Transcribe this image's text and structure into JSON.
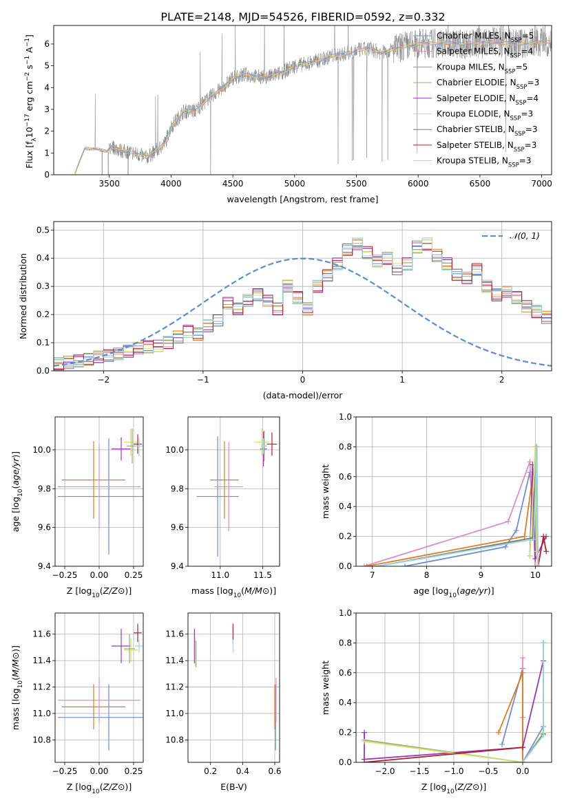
{
  "figure_title": "PLATE=2148, MJD=54526, FIBERID=0592, z=0.332",
  "colors": {
    "Chabrier MILES": "#6b8fd6",
    "Salpeter MILES": "#e38bbf",
    "Kroupa MILES": "#e07b1f",
    "Chabrier ELODIE": "#9aae78",
    "Salpeter ELODIE": "#9b35b4",
    "Kroupa ELODIE": "#d4e36a",
    "Chabrier STELIB": "#7a7a7a",
    "Salpeter STELIB": "#b21e2a",
    "Kroupa STELIB": "#9dd6e3",
    "data": "#808080",
    "normal": "#5b8fd6"
  },
  "chart_data": [
    {
      "id": "spectrum",
      "type": "line",
      "xlabel": "wavelength [Angstrom, rest frame]",
      "ylabel_parts": [
        "Flux [f",
        "λ",
        "10",
        "−17",
        " erg cm",
        "−2",
        " s",
        "−1",
        " A",
        "−1",
        "]"
      ],
      "xlim": [
        3050,
        7080
      ],
      "ylim": [
        0,
        6.85
      ],
      "xticks": [
        3500,
        4000,
        4500,
        5000,
        5500,
        6000,
        6500,
        7000
      ],
      "yticks": [
        0,
        1,
        2,
        3,
        4,
        5,
        6
      ],
      "continuum": {
        "x": [
          3220,
          3300,
          3400,
          3480,
          3520,
          3600,
          3700,
          3800,
          3860,
          3950,
          4000,
          4100,
          4200,
          4300,
          4400,
          4500,
          4600,
          4700,
          4800,
          4900,
          5000,
          5100,
          5200,
          5300,
          5400,
          5500,
          5600,
          5700,
          5800,
          5900,
          6000,
          6200,
          6400,
          6600,
          6800,
          7000
        ],
        "y": [
          0,
          1.2,
          1.2,
          1.05,
          1.3,
          1.1,
          1.0,
          0.8,
          1.0,
          1.45,
          2.2,
          2.9,
          2.95,
          3.5,
          3.9,
          4.45,
          4.6,
          4.5,
          4.5,
          4.7,
          5.0,
          5.1,
          5.25,
          5.45,
          5.55,
          5.7,
          5.8,
          5.6,
          5.75,
          5.9,
          6.0,
          6.05,
          6.0,
          6.1,
          6.0,
          6.1
        ]
      },
      "legend": [
        {
          "name": "Chabrier MILES",
          "nssp": "5"
        },
        {
          "name": "Salpeter MILES",
          "nssp": "4"
        },
        {
          "name": "Kroupa MILES",
          "nssp": "5"
        },
        {
          "name": "Chabrier ELODIE",
          "nssp": "3"
        },
        {
          "name": "Salpeter ELODIE",
          "nssp": "4"
        },
        {
          "name": "Kroupa ELODIE",
          "nssp": "3"
        },
        {
          "name": "Chabrier STELIB",
          "nssp": "3"
        },
        {
          "name": "Salpeter STELIB",
          "nssp": "3"
        },
        {
          "name": "Kroupa STELIB",
          "nssp": "3"
        }
      ],
      "legend_placement": "upper-right"
    },
    {
      "id": "residuals",
      "type": "step",
      "xlabel": "(data-model)/error",
      "ylabel": "Normed distribution",
      "xlim": [
        -2.5,
        2.5
      ],
      "ylim": [
        0,
        0.53
      ],
      "xticks": [
        -2,
        -1,
        0,
        1,
        2
      ],
      "yticks": [
        0.0,
        0.1,
        0.2,
        0.3,
        0.4,
        0.5
      ],
      "bin_width": 0.1,
      "base_hist": [
        0.02,
        0.025,
        0.03,
        0.035,
        0.04,
        0.05,
        0.055,
        0.06,
        0.07,
        0.08,
        0.085,
        0.09,
        0.1,
        0.12,
        0.14,
        0.13,
        0.16,
        0.18,
        0.24,
        0.22,
        0.25,
        0.27,
        0.25,
        0.22,
        0.3,
        0.26,
        0.22,
        0.3,
        0.34,
        0.38,
        0.43,
        0.45,
        0.42,
        0.39,
        0.4,
        0.36,
        0.38,
        0.44,
        0.45,
        0.41,
        0.38,
        0.34,
        0.33,
        0.36,
        0.3,
        0.27,
        0.28,
        0.26,
        0.23,
        0.21,
        0.19,
        0.16,
        0.14,
        0.12,
        0.1,
        0.08,
        0.075,
        0.065,
        0.06,
        0.055,
        0.045,
        0.04,
        0.035,
        0.03
      ],
      "hist_start": -2.6,
      "legend": [
        {
          "name": "𝒩(0, 1)"
        }
      ],
      "legend_placement": "upper-right"
    },
    {
      "id": "age_vs_Z",
      "type": "errorbar",
      "xlabel": "Z [log10(Z/Z⊙)]",
      "ylabel": "age  [log10(age/yr)]",
      "xlim": [
        -0.32,
        0.32
      ],
      "ylim": [
        9.4,
        10.17
      ],
      "xticks": [
        -0.25,
        0.0,
        0.25
      ],
      "xtick_labels": [
        "−0.25",
        "0.00",
        "0.25"
      ],
      "yticks": [
        9.4,
        9.6,
        9.8,
        10.0
      ],
      "points": [
        {
          "model": "Chabrier MILES",
          "x": 0.07,
          "y": 9.76,
          "xerr": 0.37,
          "yerr": 0.3
        },
        {
          "model": "Salpeter MILES",
          "x": 0.0,
          "y": 9.81,
          "xerr": 0.3,
          "yerr": 0.22
        },
        {
          "model": "Kroupa MILES",
          "x": -0.04,
          "y": 9.845,
          "xerr": 0.23,
          "yerr": 0.2
        },
        {
          "model": "Salpeter ELODIE",
          "x": 0.16,
          "y": 10.005,
          "xerr": 0.07,
          "yerr": 0.06
        },
        {
          "model": "Kroupa ELODIE",
          "x": 0.23,
          "y": 10.04,
          "xerr": 0.05,
          "yerr": 0.07
        },
        {
          "model": "Chabrier ELODIE",
          "x": 0.24,
          "y": 10.02,
          "xerr": 0.04,
          "yerr": 0.09
        },
        {
          "model": "Salpeter STELIB",
          "x": 0.28,
          "y": 10.03,
          "xerr": 0.03,
          "yerr": 0.05
        },
        {
          "model": "Kroupa STELIB",
          "x": 0.29,
          "y": 10.02,
          "xerr": 0.03,
          "yerr": 0.05
        }
      ]
    },
    {
      "id": "age_vs_mass",
      "type": "errorbar",
      "xlabel": "mass [log10(M/M⊙)]",
      "ylabel": "",
      "xlim": [
        10.62,
        11.7
      ],
      "ylim": [
        9.4,
        10.17
      ],
      "xticks": [
        11.0,
        11.5
      ],
      "xtick_labels": [
        "11.0",
        "11.5"
      ],
      "yticks": [
        9.4,
        9.6,
        9.8,
        10.0
      ],
      "points": [
        {
          "model": "Chabrier MILES",
          "x": 10.97,
          "y": 9.76,
          "xerr": 0.25,
          "yerr": 0.31
        },
        {
          "model": "Salpeter MILES",
          "x": 11.1,
          "y": 9.81,
          "xerr": 0.17,
          "yerr": 0.23
        },
        {
          "model": "Kroupa MILES",
          "x": 11.05,
          "y": 9.845,
          "xerr": 0.17,
          "yerr": 0.2
        },
        {
          "model": "Salpeter ELODIE",
          "x": 11.51,
          "y": 10.005,
          "xerr": 0.04,
          "yerr": 0.09
        },
        {
          "model": "Kroupa ELODIE",
          "x": 11.49,
          "y": 10.04,
          "xerr": 0.08,
          "yerr": 0.07
        },
        {
          "model": "Chabrier ELODIE",
          "x": 11.52,
          "y": 10.02,
          "xerr": 0.03,
          "yerr": 0.08
        },
        {
          "model": "Salpeter STELIB",
          "x": 11.61,
          "y": 10.03,
          "xerr": 0.06,
          "yerr": 0.06
        },
        {
          "model": "Kroupa STELIB",
          "x": 11.51,
          "y": 10.02,
          "xerr": 0.03,
          "yerr": 0.04
        }
      ]
    },
    {
      "id": "weight_vs_age",
      "type": "line",
      "xlabel": "age  [log10(age/yr)]",
      "ylabel": "mass weight",
      "xlim": [
        6.7,
        10.3
      ],
      "ylim": [
        0,
        1
      ],
      "xticks": [
        7,
        8,
        9,
        10
      ],
      "xtick_labels": [
        "7",
        "8",
        "9",
        "10"
      ],
      "yticks": [
        0,
        0.2,
        0.4,
        0.6,
        0.8,
        1.0
      ],
      "series": [
        {
          "model": "Chabrier MILES",
          "x": [
            7.6,
            9.45,
            9.65,
            9.9,
            10.05
          ],
          "y": [
            0.0,
            0.13,
            0.24,
            0.63,
            0.0
          ]
        },
        {
          "model": "Salpeter MILES",
          "x": [
            6.85,
            9.5,
            9.9,
            10.0
          ],
          "y": [
            0.0,
            0.3,
            0.7,
            0.0
          ]
        },
        {
          "model": "Kroupa MILES",
          "x": [
            6.9,
            9.8,
            9.95,
            10.05
          ],
          "y": [
            0.0,
            0.2,
            0.6,
            0.0
          ]
        },
        {
          "model": "Chabrier ELODIE",
          "x": [
            7.1,
            9.95,
            10.02,
            10.04
          ],
          "y": [
            0.0,
            0.19,
            0.8,
            0.0
          ]
        },
        {
          "model": "Salpeter ELODIE",
          "x": [
            9.9,
            9.95,
            10.0,
            10.2
          ],
          "y": [
            0.07,
            0.68,
            0.05,
            0.2
          ]
        },
        {
          "model": "Kroupa ELODIE",
          "x": [
            9.9,
            10.0,
            10.02,
            10.05
          ],
          "y": [
            0.07,
            0.8,
            0.1,
            0.0
          ]
        },
        {
          "model": "Chabrier STELIB",
          "x": [
            7.1,
            9.95,
            10.03
          ],
          "y": [
            0.0,
            0.19,
            0.8
          ]
        },
        {
          "model": "Salpeter STELIB",
          "x": [
            10.05,
            10.15,
            10.2
          ],
          "y": [
            0.0,
            0.2,
            0.1
          ]
        },
        {
          "model": "Kroupa STELIB",
          "x": [
            7.1,
            9.97,
            10.03,
            10.05
          ],
          "y": [
            0.0,
            0.18,
            0.8,
            0.0
          ]
        }
      ]
    },
    {
      "id": "mass_vs_Z",
      "type": "errorbar",
      "xlabel": "Z [log10(Z/Z⊙)]",
      "ylabel": "mass [log10(M/M⊙)]",
      "xlim": [
        -0.32,
        0.32
      ],
      "ylim": [
        10.63,
        11.76
      ],
      "xticks": [
        -0.25,
        0.0,
        0.25
      ],
      "xtick_labels": [
        "−0.25",
        "0.00",
        "0.25"
      ],
      "yticks": [
        10.8,
        11.0,
        11.2,
        11.4,
        11.6
      ],
      "points": [
        {
          "model": "Chabrier MILES",
          "x": 0.07,
          "y": 10.97,
          "xerr": 0.37,
          "yerr": 0.25
        },
        {
          "model": "Salpeter MILES",
          "x": 0.0,
          "y": 11.1,
          "xerr": 0.3,
          "yerr": 0.17
        },
        {
          "model": "Kroupa MILES",
          "x": -0.04,
          "y": 11.05,
          "xerr": 0.23,
          "yerr": 0.17
        },
        {
          "model": "Salpeter ELODIE",
          "x": 0.16,
          "y": 11.51,
          "xerr": 0.07,
          "yerr": 0.13
        },
        {
          "model": "Kroupa ELODIE",
          "x": 0.23,
          "y": 11.48,
          "xerr": 0.05,
          "yerr": 0.09
        },
        {
          "model": "Chabrier ELODIE",
          "x": 0.22,
          "y": 11.49,
          "xerr": 0.04,
          "yerr": 0.11
        },
        {
          "model": "Salpeter STELIB",
          "x": 0.28,
          "y": 11.61,
          "xerr": 0.03,
          "yerr": 0.07
        },
        {
          "model": "Kroupa STELIB",
          "x": 0.29,
          "y": 11.51,
          "xerr": 0.03,
          "yerr": 0.05
        }
      ]
    },
    {
      "id": "mass_vs_ebv",
      "type": "errorbar",
      "xlabel": "E(B-V)",
      "ylabel": "",
      "xlim": [
        0.06,
        0.63
      ],
      "ylim": [
        10.63,
        11.76
      ],
      "xticks": [
        0.2,
        0.4,
        0.6
      ],
      "xtick_labels": [
        "0.2",
        "0.4",
        "0.6"
      ],
      "yticks": [
        10.8,
        11.0,
        11.2,
        11.4,
        11.6
      ],
      "points": [
        {
          "model": "Salpeter ELODIE",
          "x": 0.1,
          "y": 11.51,
          "xerr": 0.0,
          "yerr": 0.13
        },
        {
          "model": "Kroupa ELODIE",
          "x": 0.105,
          "y": 11.47,
          "xerr": 0.0,
          "yerr": 0.11
        },
        {
          "model": "Chabrier ELODIE",
          "x": 0.11,
          "y": 11.45,
          "xerr": 0.0,
          "yerr": 0.1
        },
        {
          "model": "Salpeter STELIB",
          "x": 0.34,
          "y": 11.61,
          "xerr": 0.0,
          "yerr": 0.07
        },
        {
          "model": "Kroupa STELIB",
          "x": 0.34,
          "y": 11.51,
          "xerr": 0.0,
          "yerr": 0.05
        },
        {
          "model": "Chabrier MILES",
          "x": 0.605,
          "y": 10.97,
          "xerr": 0.0,
          "yerr": 0.25
        },
        {
          "model": "Salpeter MILES",
          "x": 0.608,
          "y": 11.1,
          "xerr": 0.0,
          "yerr": 0.17
        },
        {
          "model": "Kroupa MILES",
          "x": 0.6,
          "y": 11.05,
          "xerr": 0.0,
          "yerr": 0.17
        }
      ]
    },
    {
      "id": "weight_vs_Z",
      "type": "line",
      "xlabel": "Z [log10(Z/Z⊙)]",
      "ylabel": "mass weight",
      "xlim": [
        -2.42,
        0.42
      ],
      "ylim": [
        0,
        1
      ],
      "xticks": [
        -2.0,
        -1.5,
        -1.0,
        -0.5,
        0.0
      ],
      "xtick_labels": [
        "−2.0",
        "−1.5",
        "−1.0",
        "−0.5",
        "0.0"
      ],
      "yticks": [
        0,
        0.2,
        0.4,
        0.6,
        0.8,
        1.0
      ],
      "series": [
        {
          "model": "Chabrier MILES",
          "x": [
            -0.3,
            0.0,
            0.0,
            0.3,
            0.3
          ],
          "y": [
            0.12,
            0.63,
            0.0,
            0.24,
            0.8
          ]
        },
        {
          "model": "Salpeter MILES",
          "x": [
            0.0,
            0.0,
            0.0
          ],
          "y": [
            0.0,
            0.3,
            0.7
          ]
        },
        {
          "model": "Kroupa MILES",
          "x": [
            -0.35,
            0.0,
            0.0
          ],
          "y": [
            0.2,
            0.6,
            0.0
          ]
        },
        {
          "model": "Chabrier ELODIE",
          "x": [
            -2.3,
            0.0,
            0.3,
            0.3
          ],
          "y": [
            0.15,
            0.0,
            0.19,
            0.8
          ]
        },
        {
          "model": "Salpeter ELODIE",
          "x": [
            -2.3,
            -2.3,
            0.0,
            0.3
          ],
          "y": [
            0.2,
            0.02,
            0.1,
            0.68
          ]
        },
        {
          "model": "Kroupa ELODIE",
          "x": [
            -2.3,
            0.0,
            0.3,
            0.3
          ],
          "y": [
            0.14,
            0.0,
            0.2,
            0.8
          ]
        },
        {
          "model": "Chabrier STELIB",
          "x": [
            0.0,
            0.3,
            0.3
          ],
          "y": [
            0.0,
            0.19,
            0.8
          ]
        },
        {
          "model": "Salpeter STELIB",
          "x": [
            -2.3,
            0.0
          ],
          "y": [
            0.0,
            0.1
          ]
        },
        {
          "model": "Kroupa STELIB",
          "x": [
            0.0,
            0.3,
            0.3
          ],
          "y": [
            0.0,
            0.18,
            0.8
          ]
        }
      ]
    }
  ]
}
